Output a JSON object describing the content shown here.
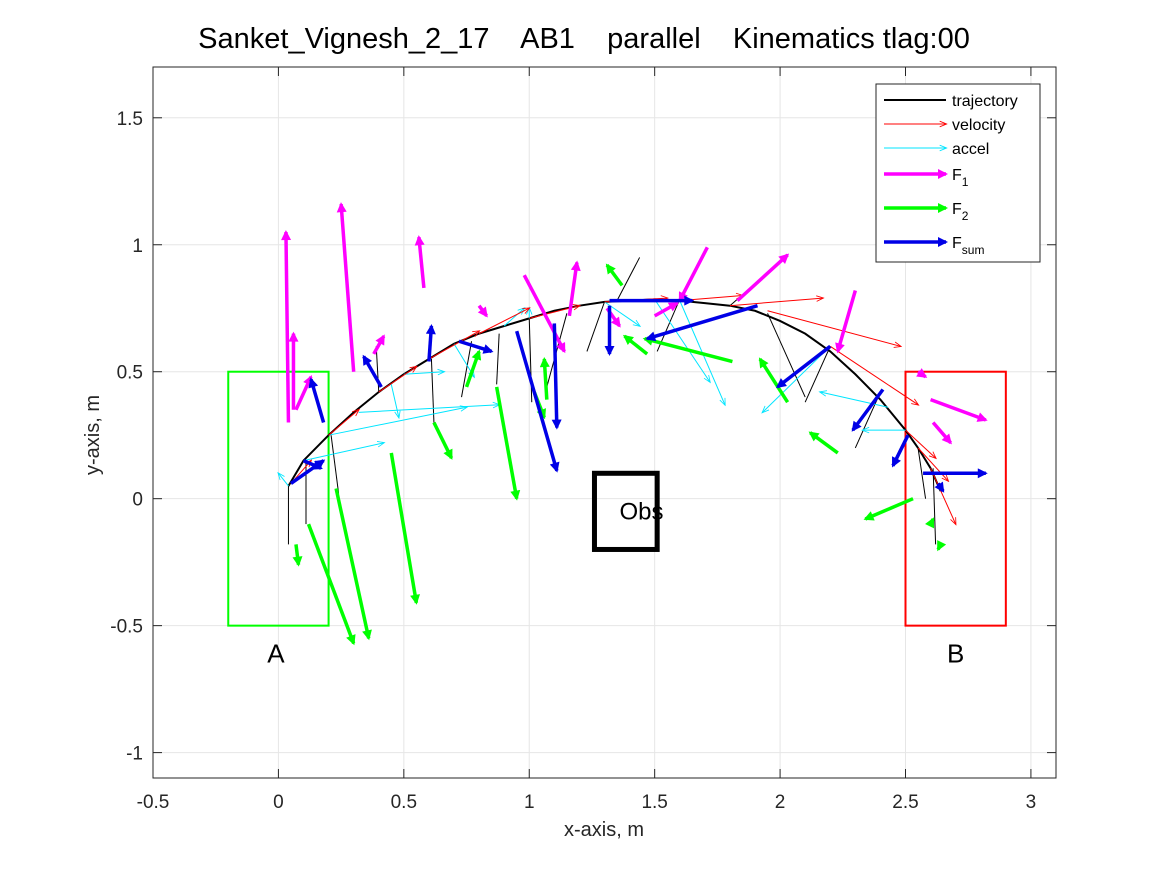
{
  "chart_data": {
    "type": "line",
    "title": "Sanket_Vignesh_2_17    AB1    parallel    Kinematics tlag:00",
    "xlabel": "x-axis, m",
    "ylabel": "y-axis, m",
    "xlim": [
      -0.5,
      3.1
    ],
    "ylim": [
      -1.1,
      1.7
    ],
    "xticks": [
      -0.5,
      0,
      0.5,
      1,
      1.5,
      2,
      2.5,
      3
    ],
    "xtick_labels": [
      "-0.5",
      "0",
      "0.5",
      "1",
      "1.5",
      "2",
      "2.5",
      "3"
    ],
    "yticks": [
      -1,
      -0.5,
      0,
      0.5,
      1,
      1.5
    ],
    "ytick_labels": [
      "-1",
      "-0.5",
      "0",
      "0.5",
      "1",
      "1.5"
    ],
    "grid": true,
    "legend_position": "top-right",
    "legend": [
      {
        "key": "trajectory",
        "label": "trajectory",
        "sub": "",
        "color": "#000000",
        "kind": "line"
      },
      {
        "key": "velocity",
        "label": "velocity",
        "sub": "",
        "color": "#ff0000",
        "kind": "thin-arrow"
      },
      {
        "key": "accel",
        "label": "accel",
        "sub": "",
        "color": "#00ffff",
        "kind": "thin-arrow"
      },
      {
        "key": "F1",
        "label": "F",
        "sub": "1",
        "color": "#ff00ff",
        "kind": "thick-arrow"
      },
      {
        "key": "F2",
        "label": "F",
        "sub": "2",
        "color": "#00ff00",
        "kind": "thick-arrow"
      },
      {
        "key": "Fsum",
        "label": "F",
        "sub": "sum",
        "color": "#0000ff",
        "kind": "thick-arrow"
      }
    ],
    "trajectory": {
      "x": [
        0.04,
        0.1,
        0.2,
        0.3,
        0.4,
        0.5,
        0.6,
        0.7,
        0.8,
        0.9,
        1.0,
        1.1,
        1.2,
        1.3,
        1.4,
        1.5,
        1.6,
        1.7,
        1.8,
        1.9,
        2.0,
        2.1,
        2.2,
        2.3,
        2.4,
        2.5,
        2.55,
        2.6,
        2.64
      ],
      "y": [
        0.05,
        0.15,
        0.25,
        0.34,
        0.42,
        0.49,
        0.55,
        0.61,
        0.65,
        0.68,
        0.71,
        0.74,
        0.76,
        0.775,
        0.78,
        0.785,
        0.78,
        0.77,
        0.76,
        0.74,
        0.7,
        0.65,
        0.58,
        0.49,
        0.39,
        0.27,
        0.2,
        0.12,
        0.03
      ]
    },
    "vectors": {
      "velocity": [
        [
          0.05,
          0.06,
          0.13,
          0.15
        ],
        [
          0.2,
          0.25,
          0.32,
          0.35
        ],
        [
          0.4,
          0.42,
          0.55,
          0.52
        ],
        [
          0.6,
          0.55,
          0.8,
          0.66
        ],
        [
          0.8,
          0.65,
          1.0,
          0.75
        ],
        [
          1.0,
          0.71,
          1.2,
          0.76
        ],
        [
          1.3,
          0.775,
          1.55,
          0.79
        ],
        [
          1.6,
          0.78,
          1.85,
          0.8
        ],
        [
          1.8,
          0.76,
          2.17,
          0.79
        ],
        [
          1.95,
          0.74,
          2.48,
          0.6
        ],
        [
          2.2,
          0.6,
          2.55,
          0.37
        ],
        [
          2.5,
          0.27,
          2.62,
          0.16
        ],
        [
          2.55,
          0.2,
          2.67,
          0.07
        ],
        [
          2.6,
          0.12,
          2.7,
          -0.1
        ]
      ],
      "accel": [
        [
          0.04,
          0.05,
          0.0,
          0.1
        ],
        [
          0.1,
          0.15,
          0.42,
          0.22
        ],
        [
          0.2,
          0.25,
          0.75,
          0.36
        ],
        [
          0.32,
          0.34,
          0.88,
          0.37
        ],
        [
          0.45,
          0.45,
          0.48,
          0.32
        ],
        [
          0.5,
          0.49,
          0.66,
          0.5
        ],
        [
          0.7,
          0.61,
          0.78,
          0.48
        ],
        [
          0.9,
          0.68,
          0.98,
          0.75
        ],
        [
          1.0,
          0.71,
          1.0,
          0.75
        ],
        [
          1.3,
          0.775,
          1.44,
          0.68
        ],
        [
          1.5,
          0.785,
          1.72,
          0.46
        ],
        [
          1.6,
          0.78,
          1.78,
          0.37
        ],
        [
          2.2,
          0.6,
          1.93,
          0.34
        ],
        [
          2.43,
          0.36,
          2.16,
          0.42
        ],
        [
          2.5,
          0.27,
          2.33,
          0.27
        ]
      ],
      "F1": [
        [
          0.04,
          0.3,
          0.03,
          1.05
        ],
        [
          0.06,
          0.35,
          0.06,
          0.65
        ],
        [
          0.07,
          0.35,
          0.13,
          0.48
        ],
        [
          0.3,
          0.5,
          0.25,
          1.16
        ],
        [
          0.38,
          0.57,
          0.42,
          0.64
        ],
        [
          0.58,
          0.83,
          0.56,
          1.03
        ],
        [
          0.8,
          0.76,
          0.83,
          0.72
        ],
        [
          0.98,
          0.88,
          1.14,
          0.58
        ],
        [
          1.16,
          0.72,
          1.19,
          0.93
        ],
        [
          1.31,
          0.75,
          1.36,
          0.68
        ],
        [
          1.5,
          0.72,
          1.59,
          0.77
        ],
        [
          1.71,
          0.99,
          1.6,
          0.78
        ],
        [
          1.83,
          0.78,
          2.03,
          0.96
        ],
        [
          2.3,
          0.82,
          2.23,
          0.58
        ],
        [
          2.55,
          0.5,
          2.58,
          0.48
        ],
        [
          2.6,
          0.39,
          2.82,
          0.31
        ],
        [
          2.61,
          0.3,
          2.68,
          0.22
        ]
      ],
      "F2": [
        [
          0.07,
          -0.18,
          0.08,
          -0.26
        ],
        [
          0.12,
          -0.1,
          0.3,
          -0.57
        ],
        [
          0.23,
          0.04,
          0.36,
          -0.55
        ],
        [
          0.45,
          0.18,
          0.55,
          -0.41
        ],
        [
          0.62,
          0.3,
          0.69,
          0.16
        ],
        [
          0.75,
          0.44,
          0.8,
          0.58
        ],
        [
          0.87,
          0.44,
          0.95,
          0.0
        ],
        [
          1.02,
          0.42,
          1.06,
          0.32
        ],
        [
          1.07,
          0.39,
          1.06,
          0.55
        ],
        [
          1.37,
          0.84,
          1.31,
          0.92
        ],
        [
          1.47,
          0.57,
          1.38,
          0.64
        ],
        [
          1.81,
          0.54,
          1.46,
          0.63
        ],
        [
          2.03,
          0.38,
          1.92,
          0.55
        ],
        [
          2.23,
          0.18,
          2.12,
          0.26
        ],
        [
          2.53,
          0.0,
          2.34,
          -0.08
        ],
        [
          2.6,
          -0.1,
          2.61,
          -0.08
        ],
        [
          2.64,
          -0.18,
          2.63,
          -0.2
        ]
      ],
      "Fsum": [
        [
          0.05,
          0.06,
          0.18,
          0.15
        ],
        [
          0.1,
          0.15,
          0.17,
          0.12
        ],
        [
          0.18,
          0.3,
          0.13,
          0.47
        ],
        [
          0.41,
          0.44,
          0.34,
          0.56
        ],
        [
          0.6,
          0.54,
          0.61,
          0.68
        ],
        [
          0.72,
          0.62,
          0.85,
          0.58
        ],
        [
          0.95,
          0.66,
          1.11,
          0.11
        ],
        [
          1.1,
          0.69,
          1.11,
          0.28
        ],
        [
          1.32,
          0.76,
          1.32,
          0.57
        ],
        [
          1.32,
          0.78,
          1.65,
          0.78
        ],
        [
          1.91,
          0.76,
          1.47,
          0.63
        ],
        [
          2.2,
          0.6,
          1.99,
          0.44
        ],
        [
          2.41,
          0.43,
          2.29,
          0.27
        ],
        [
          2.51,
          0.25,
          2.45,
          0.13
        ],
        [
          2.57,
          0.1,
          2.82,
          0.1
        ],
        [
          2.63,
          0.06,
          2.65,
          0.03
        ]
      ],
      "stems": [
        [
          0.04,
          0.05,
          0.04,
          -0.18
        ],
        [
          0.11,
          0.15,
          0.11,
          -0.1
        ],
        [
          0.21,
          0.25,
          0.24,
          0.02
        ],
        [
          0.4,
          0.42,
          0.39,
          0.6
        ],
        [
          0.61,
          0.55,
          0.62,
          0.3
        ],
        [
          0.77,
          0.62,
          0.73,
          0.4
        ],
        [
          0.88,
          0.65,
          0.87,
          0.45
        ],
        [
          1.0,
          0.71,
          1.01,
          0.38
        ],
        [
          1.15,
          0.73,
          1.07,
          0.44
        ],
        [
          1.3,
          0.775,
          1.23,
          0.58
        ],
        [
          1.35,
          0.78,
          1.44,
          0.95
        ],
        [
          1.6,
          0.785,
          1.51,
          0.58
        ],
        [
          1.8,
          0.76,
          2.02,
          0.95
        ],
        [
          1.95,
          0.73,
          2.1,
          0.4
        ],
        [
          2.2,
          0.6,
          2.1,
          0.38
        ],
        [
          2.4,
          0.42,
          2.3,
          0.2
        ],
        [
          2.55,
          0.2,
          2.58,
          0.0
        ],
        [
          2.61,
          0.12,
          2.62,
          -0.18
        ]
      ]
    },
    "regions": [
      {
        "label": "A",
        "x0": -0.2,
        "x1": 0.2,
        "y0": -0.5,
        "y1": 0.5,
        "color": "#00ff00",
        "label_x": -0.01,
        "label_y": -0.61
      },
      {
        "label": "B",
        "x0": 2.5,
        "x1": 2.9,
        "y0": -0.5,
        "y1": 0.5,
        "color": "#ff0000",
        "label_x": 2.7,
        "label_y": -0.61
      }
    ],
    "obstacle": {
      "label": "Obs",
      "x0": 1.26,
      "x1": 1.51,
      "y0": -0.2,
      "y1": 0.1,
      "color": "#000000"
    }
  }
}
